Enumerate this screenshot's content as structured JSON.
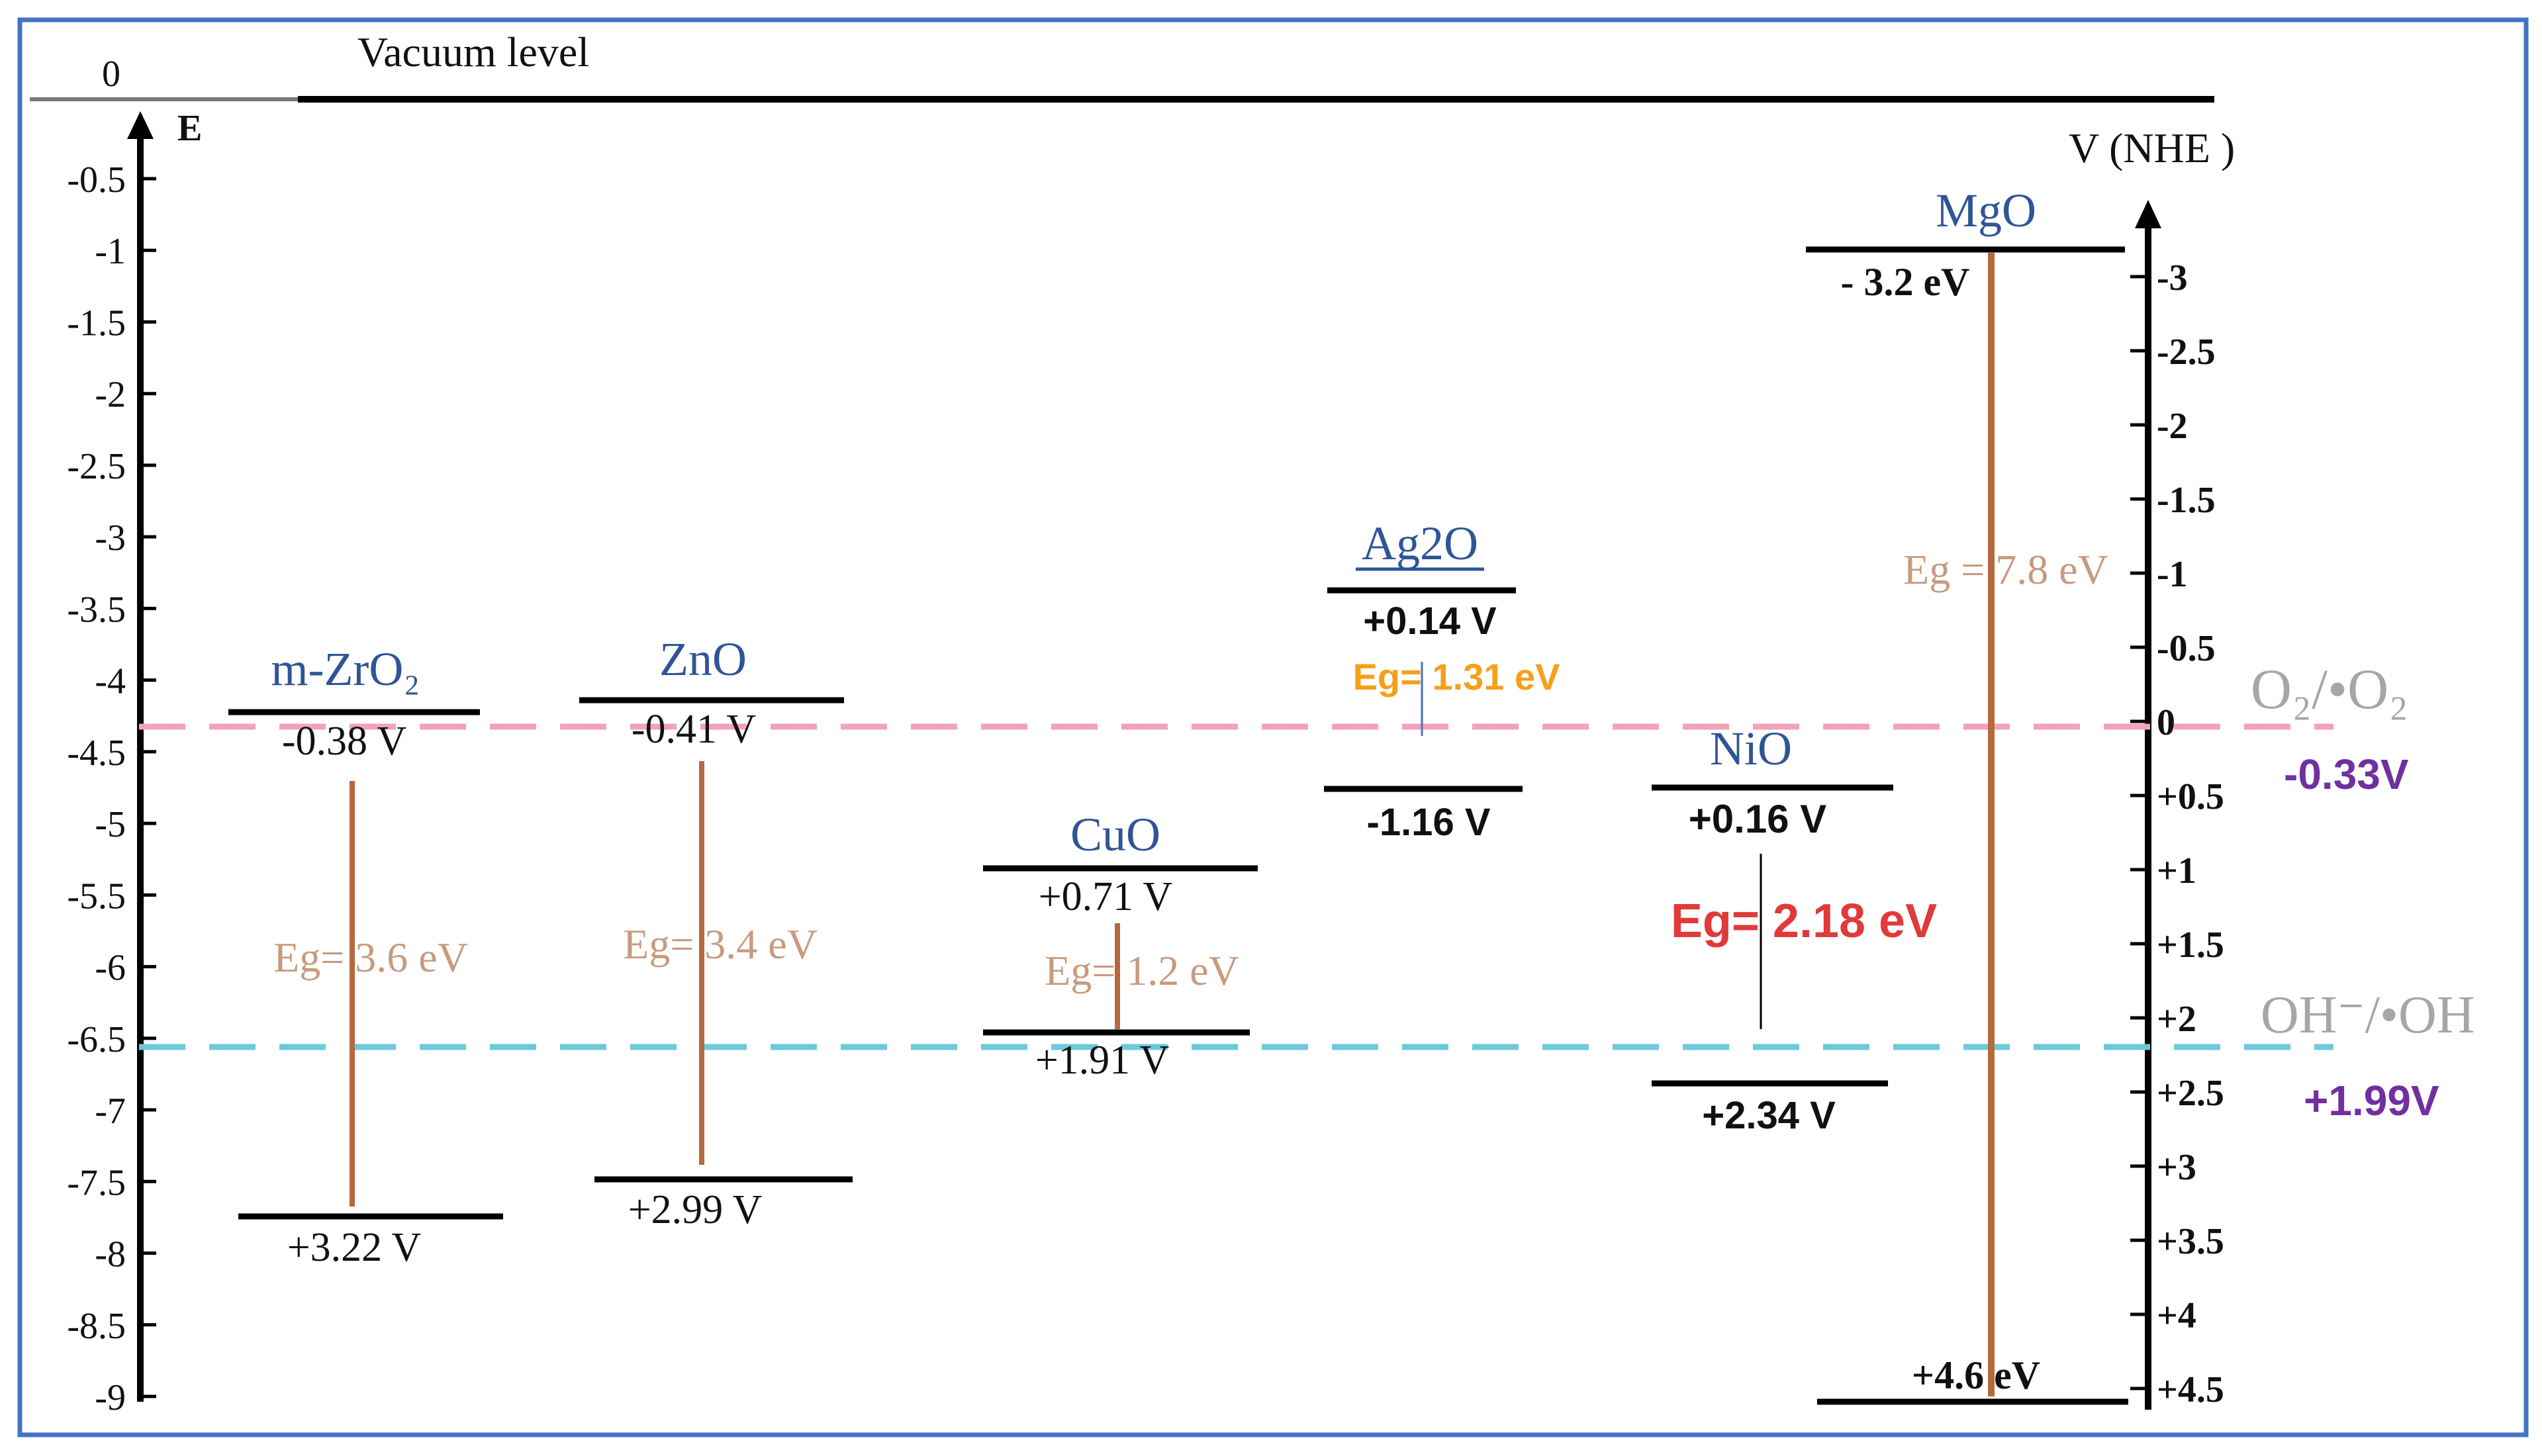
{
  "vacuum": {
    "zero_label": "0",
    "label": "Vacuum level"
  },
  "left_axis": {
    "label": "E",
    "ticks": [
      "-0.5",
      "-1",
      "-1.5",
      "-2",
      "-2.5",
      "-3",
      "-3.5",
      "-4",
      "-4.5",
      "-5",
      "-5.5",
      "-6",
      "-6.5",
      "-7",
      "-7.5",
      "-8",
      "-8.5",
      "-9"
    ]
  },
  "right_axis": {
    "label": "V (NHE )",
    "ticks": [
      "-3",
      "-2.5",
      "-2",
      "-1.5",
      "-1",
      "-0.5",
      "0",
      "+0.5",
      "+1",
      "+1.5",
      "+2",
      "+2.5",
      "+3",
      "+3.5",
      "+4",
      "+4.5"
    ]
  },
  "references": [
    {
      "label": "O₂/•O₂",
      "value": "-0.33V",
      "color": "#f2a2bd",
      "value_color": "#7030a0"
    },
    {
      "label": "OH⁻/•OH",
      "value": "+1.99V",
      "color": "#6cc9dc",
      "value_color": "#7030a0"
    }
  ],
  "materials": [
    {
      "name": "m-ZrO₂",
      "cb": "-0.38 V",
      "vb": "+3.22 V",
      "eg": "Eg= 3.6 eV"
    },
    {
      "name": "ZnO",
      "cb": "-0.41 V",
      "vb": "+2.99 V",
      "eg": "Eg= 3.4 eV"
    },
    {
      "name": "CuO",
      "cb": "+0.71 V",
      "vb": "+1.91 V",
      "eg": "Eg= 1.2 eV"
    },
    {
      "name": "Ag2O",
      "cb": "+0.14 V",
      "vb": "-1.16 V",
      "eg": "Eg= 1.31 eV"
    },
    {
      "name": "NiO",
      "cb": "+0.16 V",
      "vb": "+2.34 V",
      "eg": "Eg= 2.18 eV"
    },
    {
      "name": "MgO",
      "cb": "- 3.2 eV",
      "vb": "+4.6 eV",
      "eg": "Eg = 7.8 eV"
    }
  ],
  "colors": {
    "frame": "#4472c4",
    "material_name": "#2f5597",
    "gap_bar": "#b5693f",
    "eg_text": "#c89a7e",
    "ag2o_eg": "#f5a01a",
    "nio_eg": "#e03a3a"
  }
}
